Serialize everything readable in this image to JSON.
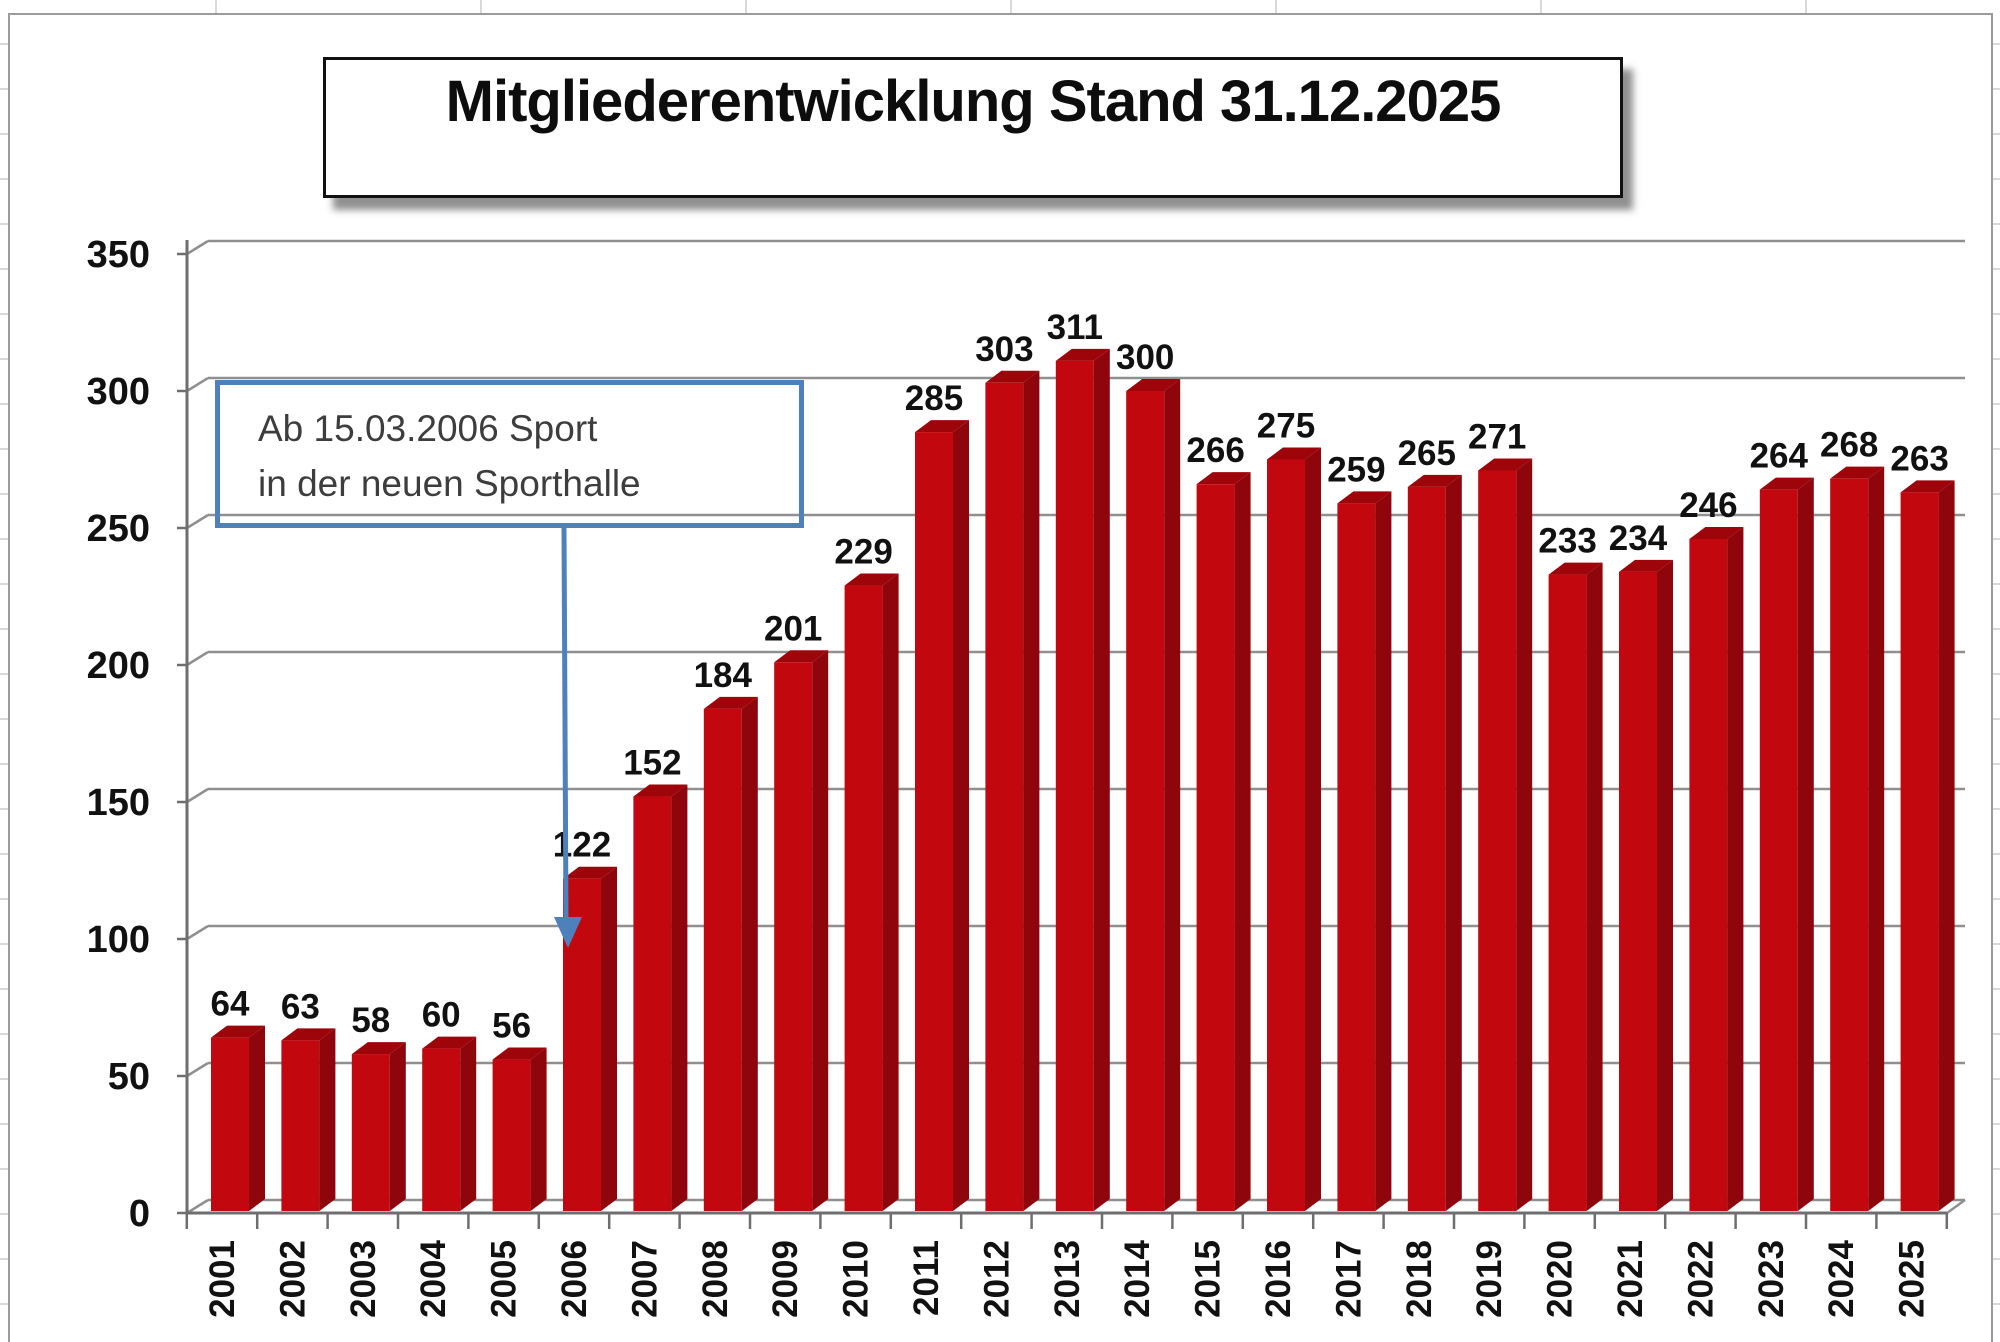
{
  "title": "Mitgliederentwicklung Stand 31.12.2025",
  "annotation": {
    "line1": "Ab 15.03.2006 Sport",
    "line2": "in der neuen Sporthalle"
  },
  "chart_data": {
    "type": "bar",
    "style": "3d-column",
    "title": "Mitgliederentwicklung Stand 31.12.2025",
    "categories": [
      "2001",
      "2002",
      "2003",
      "2004",
      "2005",
      "2006",
      "2007",
      "2008",
      "2009",
      "2010",
      "2011",
      "2012",
      "2013",
      "2014",
      "2015",
      "2016",
      "2017",
      "2018",
      "2019",
      "2020",
      "2021",
      "2022",
      "2023",
      "2024",
      "2025"
    ],
    "values": [
      64,
      63,
      58,
      60,
      56,
      122,
      152,
      184,
      201,
      229,
      285,
      303,
      311,
      300,
      266,
      275,
      259,
      265,
      271,
      233,
      234,
      246,
      264,
      268,
      263
    ],
    "xlabel": "",
    "ylabel": "",
    "ylim": [
      0,
      350
    ],
    "yticks": [
      0,
      50,
      100,
      150,
      200,
      250,
      300,
      350
    ],
    "grid": true,
    "legend": false,
    "data_labels": true,
    "annotation_text": "Ab 15.03.2006 Sport in der neuen Sporthalle",
    "annotation_target_category": "2006"
  },
  "colors": {
    "bar_front": "#C2070F",
    "bar_side": "#8E060C",
    "bar_top": "#9E050B",
    "gridline": "#8f8f8f",
    "axis": "#6e6e6e",
    "annotation_blue": "#4E80BC",
    "text": "#111111",
    "annotation_text": "#3d3d3d",
    "frame_border": "#9b9b9b",
    "sheet_line": "#d9d9d9"
  }
}
